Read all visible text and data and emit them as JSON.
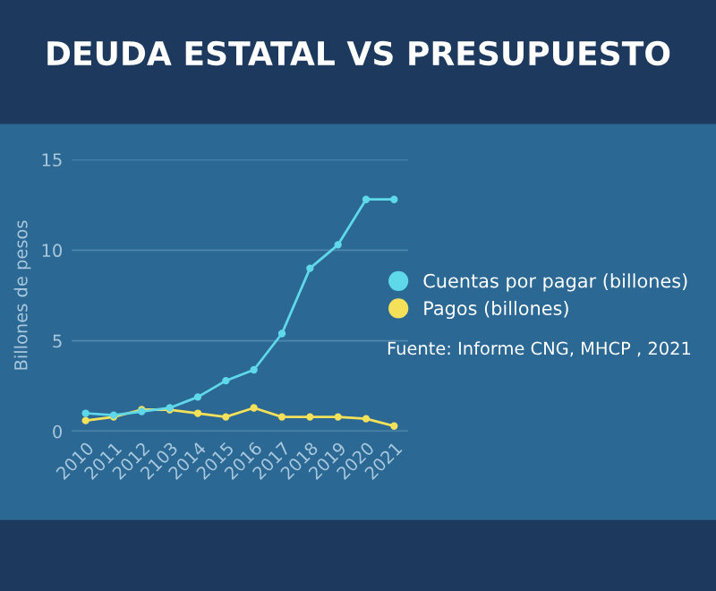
{
  "chart_data": {
    "type": "line",
    "title": "DEUDA ESTATAL VS PRESUPUESTO",
    "ylabel": "Billones de pesos",
    "categories": [
      "2010",
      "2011",
      "2012",
      "2103",
      "2014",
      "2015",
      "2016",
      "2017",
      "2018",
      "2019",
      "2020",
      "2021"
    ],
    "series": [
      {
        "name": "Cuentas por pagar (billones)",
        "color": "#5fd8ea",
        "values": [
          1.0,
          0.9,
          1.1,
          1.3,
          1.9,
          2.8,
          3.4,
          5.4,
          9.0,
          10.3,
          12.8,
          12.8
        ]
      },
      {
        "name": "Pagos (billones)",
        "color": "#f5e05a",
        "values": [
          0.6,
          0.8,
          1.2,
          1.2,
          1.0,
          0.8,
          1.3,
          0.8,
          0.8,
          0.8,
          0.7,
          0.3
        ]
      }
    ],
    "ylim": [
      0,
      15
    ],
    "yticks": [
      0,
      5,
      10,
      15
    ],
    "grid": "y",
    "legend": "right",
    "marker": "circle",
    "line_style": "solid",
    "annotations": [
      "Fuente: Informe CNG, MHCP , 2021"
    ]
  }
}
